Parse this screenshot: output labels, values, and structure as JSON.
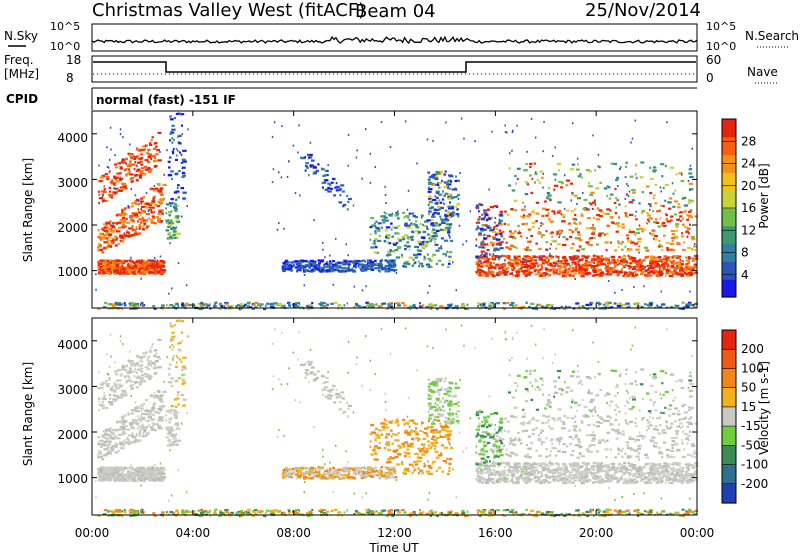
{
  "header": {
    "station": "Christmas Valley West (fitACF)",
    "beam": "Beam 04",
    "date": "25/Nov/2014"
  },
  "noise_panel": {
    "left_label": "N.Sky",
    "left_ticks": [
      "10^5",
      "10^0"
    ],
    "right_ticks": [
      "10^5",
      "10^0"
    ],
    "right_label": "N.Search"
  },
  "freq_panel": {
    "left_label_1": "Freq.",
    "left_label_2": "[MHz]",
    "left_ticks": [
      "18",
      "8"
    ],
    "right_ticks": [
      "60",
      "0"
    ],
    "right_label": "Nave"
  },
  "cpid": {
    "label": "CPID",
    "value": "normal (fast) -151 IF"
  },
  "chart_data": [
    {
      "type": "heatmap",
      "name": "power",
      "ylabel": "Slant Range [km]",
      "ylim": [
        180,
        4500
      ],
      "yticks": [
        "1000",
        "2000",
        "3000",
        "4000"
      ],
      "colorbar_label": "Power [dB]",
      "colorbar_ticks": [
        "4",
        "8",
        "12",
        "16",
        "20",
        "24",
        "28"
      ],
      "colorbar_range": [
        0,
        32
      ],
      "colorbar_colors": [
        "#1a1ae6",
        "#2c54b8",
        "#2f7fa3",
        "#3c9a6e",
        "#6fbf4a",
        "#c6d33a",
        "#f3c01e",
        "#f79018",
        "#f65e14",
        "#e52410"
      ]
    },
    {
      "type": "heatmap",
      "name": "velocity",
      "ylabel": "Slant Range [km]",
      "ylim": [
        180,
        4500
      ],
      "yticks": [
        "1000",
        "2000",
        "3000",
        "4000"
      ],
      "colorbar_label": "Velocity [m s-1]",
      "colorbar_ticks": [
        "200",
        "100",
        "50",
        "15",
        "-15",
        "-50",
        "-100",
        "-200"
      ],
      "colorbar_colors": [
        "#1f3fb4",
        "#2f6f8f",
        "#3c8c5a",
        "#6fcf3a",
        "#c8c8c4",
        "#f2b21c",
        "#f2861a",
        "#ef5a18",
        "#e52410"
      ]
    }
  ],
  "xaxis": {
    "label": "Time UT",
    "ticks": [
      "00:00",
      "04:00",
      "08:00",
      "12:00",
      "16:00",
      "20:00",
      "00:00"
    ]
  }
}
